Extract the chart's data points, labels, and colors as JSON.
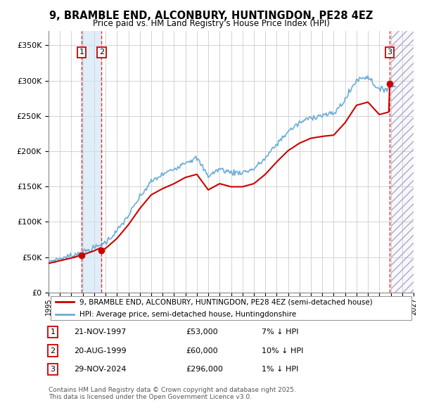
{
  "title1": "9, BRAMBLE END, ALCONBURY, HUNTINGDON, PE28 4EZ",
  "title2": "Price paid vs. HM Land Registry's House Price Index (HPI)",
  "yticks": [
    0,
    50000,
    100000,
    150000,
    200000,
    250000,
    300000,
    350000
  ],
  "ytick_labels": [
    "£0",
    "£50K",
    "£100K",
    "£150K",
    "£200K",
    "£250K",
    "£300K",
    "£350K"
  ],
  "sale_dates_num": [
    1997.89,
    1999.64,
    2024.91
  ],
  "sale_prices": [
    53000,
    60000,
    296000
  ],
  "sale_labels": [
    "1",
    "2",
    "3"
  ],
  "sale_info": [
    [
      "1",
      "21-NOV-1997",
      "£53,000",
      "7% ↓ HPI"
    ],
    [
      "2",
      "20-AUG-1999",
      "£60,000",
      "10% ↓ HPI"
    ],
    [
      "3",
      "29-NOV-2024",
      "£296,000",
      "1% ↓ HPI"
    ]
  ],
  "legend_line1": "9, BRAMBLE END, ALCONBURY, HUNTINGDON, PE28 4EZ (semi-detached house)",
  "legend_line2": "HPI: Average price, semi-detached house, Huntingdonshire",
  "footer": "Contains HM Land Registry data © Crown copyright and database right 2025.\nThis data is licensed under the Open Government Licence v3.0.",
  "hpi_color": "#6baed6",
  "sale_color": "#cc0000",
  "bg_color": "#ffffff",
  "grid_color": "#cccccc",
  "ylim": [
    0,
    370000
  ],
  "xlim_start": 1995.0,
  "xlim_end": 2027.0,
  "future_start": 2025.0,
  "shade_between_sales_color": "#ddeeff"
}
